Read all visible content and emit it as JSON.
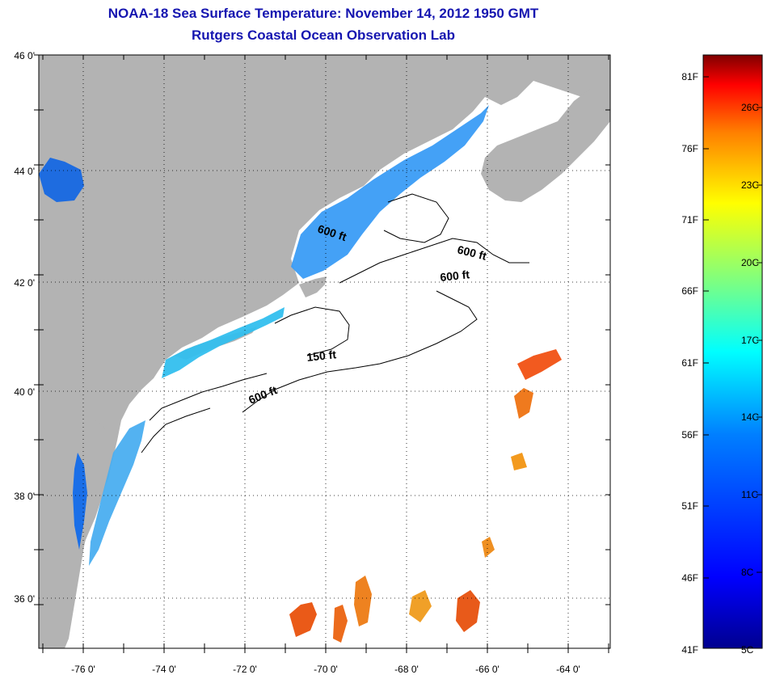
{
  "header": {
    "title": "NOAA-18 Sea Surface Temperature:  November 14, 2012 1950 GMT",
    "subtitle": "Rutgers Coastal Ocean Observation Lab"
  },
  "map": {
    "lat_labels": [
      "46 0'",
      "44 0'",
      "42 0'",
      "40 0'",
      "38 0'",
      "36 0'"
    ],
    "lon_labels": [
      "-76 0'",
      "-74 0'",
      "-72 0'",
      "-70 0'",
      "-68 0'",
      "-66 0'",
      "-64 0'"
    ],
    "contour_labels": [
      "600 ft",
      "600 ft",
      "600 ft",
      "150 ft",
      "600 ft"
    ],
    "land_color": "#b3b3b3",
    "ocean_color": "#ffffff"
  },
  "colorbar": {
    "f_labels": [
      "81F",
      "76F",
      "71F",
      "66F",
      "61F",
      "56F",
      "51F",
      "46F",
      "41F"
    ],
    "c_labels": [
      "26C",
      "23C",
      "20C",
      "17C",
      "14C",
      "11C",
      "8C",
      "5C"
    ],
    "colors": [
      "#7f0000",
      "#ff0000",
      "#ff7f00",
      "#ffff00",
      "#7fff7f",
      "#00ffff",
      "#007fff",
      "#0000ff",
      "#00008f"
    ]
  }
}
